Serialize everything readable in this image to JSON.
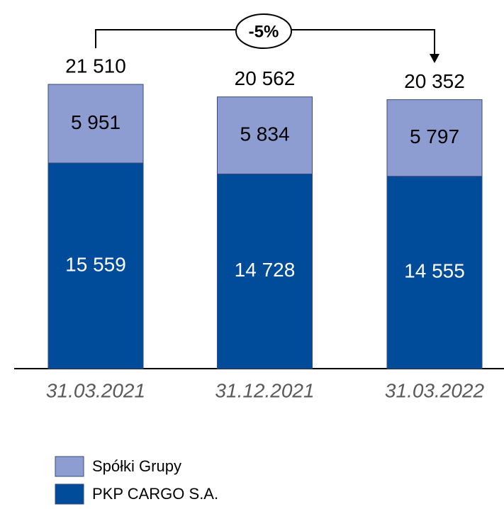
{
  "chart_data": {
    "type": "stacked_bar",
    "categories": [
      "31.03.2021",
      "31.12.2021",
      "31.03.2022"
    ],
    "series": [
      {
        "name": "PKP CARGO S.A.",
        "color": "#004c9a",
        "values": [
          15559,
          14728,
          14555
        ],
        "value_labels": [
          "15 559",
          "14 728",
          "14 555"
        ]
      },
      {
        "name": "Spółki Grupy",
        "color": "#8d9dd1",
        "values": [
          5951,
          5834,
          5797
        ],
        "value_labels": [
          "5 951",
          "5 834",
          "5 797"
        ]
      }
    ],
    "total_labels": [
      "21 510",
      "20 562",
      "20 352"
    ],
    "annotation": "-5%",
    "legend": "bottom-left"
  }
}
